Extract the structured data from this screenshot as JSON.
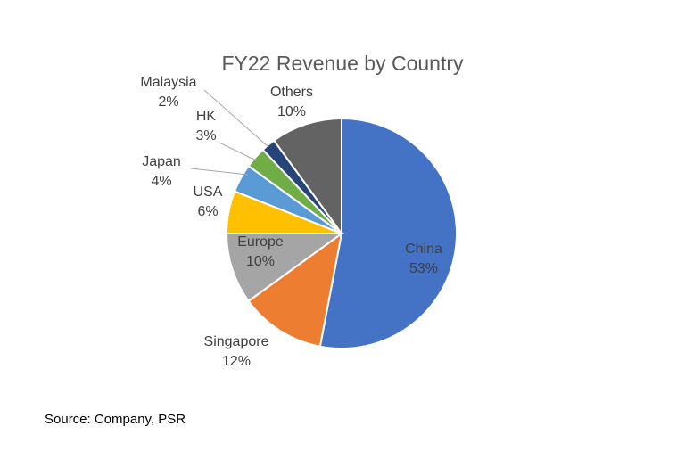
{
  "chart_data": {
    "type": "pie",
    "title": "FY22 Revenue by Country",
    "start_angle_deg": 0,
    "direction": "clockwise",
    "slices": [
      {
        "label": "China",
        "value": 53,
        "pct": "53%",
        "color": "#4472C4"
      },
      {
        "label": "Singapore",
        "value": 12,
        "pct": "12%",
        "color": "#ED7D31"
      },
      {
        "label": "Europe",
        "value": 10,
        "pct": "10%",
        "color": "#A5A5A5"
      },
      {
        "label": "USA",
        "value": 6,
        "pct": "6%",
        "color": "#FFC000"
      },
      {
        "label": "Japan",
        "value": 4,
        "pct": "4%",
        "color": "#5B9BD5"
      },
      {
        "label": "HK",
        "value": 3,
        "pct": "3%",
        "color": "#70AD47"
      },
      {
        "label": "Malaysia",
        "value": 2,
        "pct": "2%",
        "color": "#264478"
      },
      {
        "label": "Others",
        "value": 10,
        "pct": "10%",
        "color": "#636363"
      }
    ],
    "legend": "none"
  },
  "source": "Source: Company, PSR"
}
